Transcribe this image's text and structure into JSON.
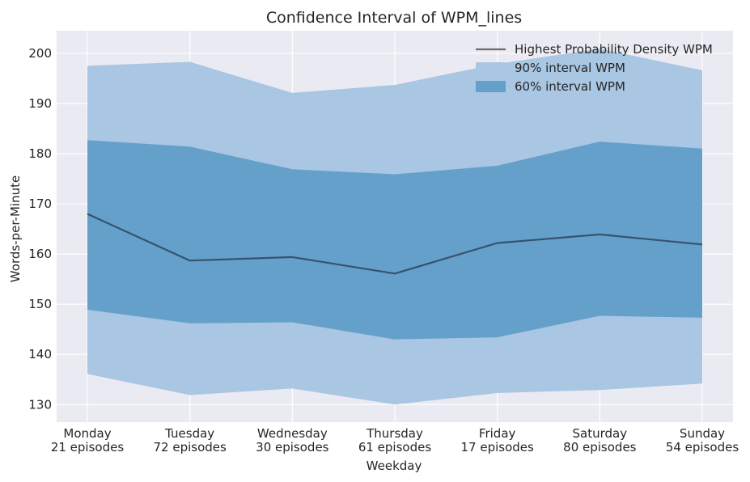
{
  "chart_data": {
    "type": "area",
    "title": "Confidence Interval of WPM_lines",
    "xlabel": "Weekday",
    "ylabel": "Words-per-Minute",
    "categories": [
      "Monday",
      "Tuesday",
      "Wednesday",
      "Thursday",
      "Friday",
      "Saturday",
      "Sunday"
    ],
    "category_sublabels": [
      "21 episodes",
      "72 episodes",
      "30 episodes",
      "61 episodes",
      "17 episodes",
      "80 episodes",
      "54 episodes"
    ],
    "ylim": [
      126.5,
      204.5
    ],
    "yticks": [
      130,
      140,
      150,
      160,
      170,
      180,
      190,
      200
    ],
    "grid": true,
    "legend_position": "top-right",
    "series": [
      {
        "name": "Highest Probability Density WPM",
        "kind": "line",
        "color": "#37526b",
        "values": [
          168.0,
          158.7,
          159.4,
          156.1,
          162.2,
          163.9,
          161.9
        ]
      },
      {
        "name": "90% interval WPM",
        "kind": "band",
        "color": "#a9c6e2",
        "lower": [
          136.1,
          131.9,
          133.2,
          130.0,
          132.3,
          132.9,
          134.2
        ],
        "upper": [
          197.5,
          198.3,
          192.1,
          193.7,
          197.9,
          200.9,
          196.6
        ]
      },
      {
        "name": "60% interval WPM",
        "kind": "band",
        "color": "#65a0cb",
        "lower": [
          148.9,
          146.2,
          146.4,
          143.0,
          143.4,
          147.7,
          147.3
        ],
        "upper": [
          182.7,
          181.4,
          176.9,
          175.9,
          177.6,
          182.4,
          181.0
        ]
      }
    ]
  }
}
